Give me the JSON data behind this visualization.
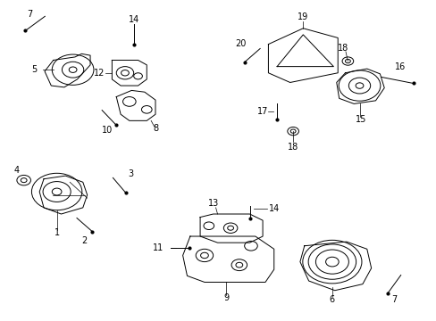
{
  "bg_color": "#ffffff",
  "line_color": "#000000",
  "font_size": 7,
  "lw": 0.7
}
